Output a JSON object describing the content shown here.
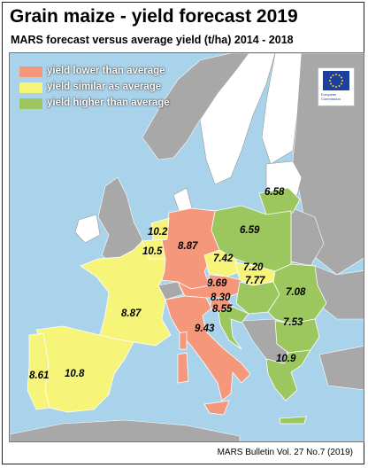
{
  "header": {
    "title": "Grain maize - yield forecast 2019",
    "subtitle": "MARS forecast versus average yield (t/ha) 2014 - 2018"
  },
  "legend": {
    "items": [
      {
        "label": "yield lower than average",
        "color": "#f4977a"
      },
      {
        "label": "yield similar as average",
        "color": "#f6f57a"
      },
      {
        "label": "yield higher than average",
        "color": "#9bc75e"
      }
    ]
  },
  "logo": {
    "text": "European Commission",
    "icon": "eu-flag-icon"
  },
  "countries": [
    {
      "name": "Portugal",
      "value": "8.61",
      "category": "similar"
    },
    {
      "name": "Spain",
      "value": "10.8",
      "category": "similar"
    },
    {
      "name": "France",
      "value": "8.87",
      "category": "similar"
    },
    {
      "name": "Belgium",
      "value": "10.2",
      "category": "similar"
    },
    {
      "name": "Netherlands",
      "value": "10.5",
      "category": "similar"
    },
    {
      "name": "Germany",
      "value": "8.87",
      "category": "lower"
    },
    {
      "name": "Poland",
      "value": "6.59",
      "category": "higher"
    },
    {
      "name": "Lithuania",
      "value": "6.58",
      "category": "higher"
    },
    {
      "name": "Czechia",
      "value": "7.42",
      "category": "similar"
    },
    {
      "name": "Slovakia",
      "value": "7.20",
      "category": "similar"
    },
    {
      "name": "Austria",
      "value": "9.69",
      "category": "lower"
    },
    {
      "name": "Hungary",
      "value": "7.77",
      "category": "higher"
    },
    {
      "name": "Slovenia",
      "value": "8.30",
      "category": "lower"
    },
    {
      "name": "Croatia",
      "value": "8.55",
      "category": "higher"
    },
    {
      "name": "Romania",
      "value": "7.08",
      "category": "higher"
    },
    {
      "name": "Bulgaria",
      "value": "7.53",
      "category": "higher"
    },
    {
      "name": "Italy",
      "value": "9.43",
      "category": "lower"
    },
    {
      "name": "Greece",
      "value": "10.9",
      "category": "higher"
    }
  ],
  "colors": {
    "sea": "#a9d3ea",
    "non_eu": "#a8a8a8",
    "lower": "#f4977a",
    "similar": "#f6f57a",
    "higher": "#9bc75e",
    "no_data": "#ffffff"
  },
  "footer": {
    "source": "MARS Bulletin Vol. 27 No.7 (2019)"
  }
}
